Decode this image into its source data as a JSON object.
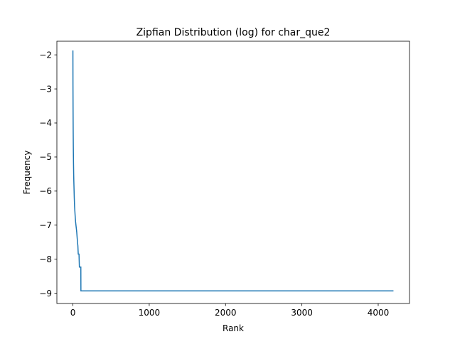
{
  "chart_data": {
    "type": "line",
    "title": "Zipfian Distribution (log) for char_que2",
    "xlabel": "Rank",
    "ylabel": "Frequency",
    "xlim": [
      -210,
      4410
    ],
    "ylim": [
      -9.3,
      -1.6
    ],
    "x_ticks": [
      0,
      1000,
      2000,
      3000,
      4000
    ],
    "x_tick_labels": [
      "0",
      "1000",
      "2000",
      "3000",
      "4000"
    ],
    "y_ticks": [
      -2,
      -3,
      -4,
      -5,
      -6,
      -7,
      -8,
      -9
    ],
    "y_tick_labels": [
      "−2",
      "−3",
      "−4",
      "−5",
      "−6",
      "−7",
      "−8",
      "−9"
    ],
    "grid": false,
    "legend": "none",
    "series": [
      {
        "color": "#1f77b4",
        "x": [
          0,
          1,
          2,
          3,
          4,
          5,
          6,
          8,
          10,
          12,
          15,
          18,
          22,
          26,
          30,
          35,
          40,
          45,
          50,
          55,
          60,
          65,
          70,
          75,
          80,
          85,
          90,
          95,
          100,
          104,
          105,
          110,
          4200
        ],
        "y": [
          -1.87,
          -2.9,
          -3.5,
          -3.95,
          -4.3,
          -4.6,
          -4.85,
          -5.2,
          -5.5,
          -5.7,
          -5.95,
          -6.2,
          -6.45,
          -6.6,
          -6.75,
          -6.9,
          -7.0,
          -7.1,
          -7.2,
          -7.35,
          -7.5,
          -7.6,
          -7.85,
          -7.85,
          -7.85,
          -8.23,
          -8.23,
          -8.23,
          -8.23,
          -8.23,
          -8.93,
          -8.93,
          -8.93
        ]
      }
    ]
  }
}
